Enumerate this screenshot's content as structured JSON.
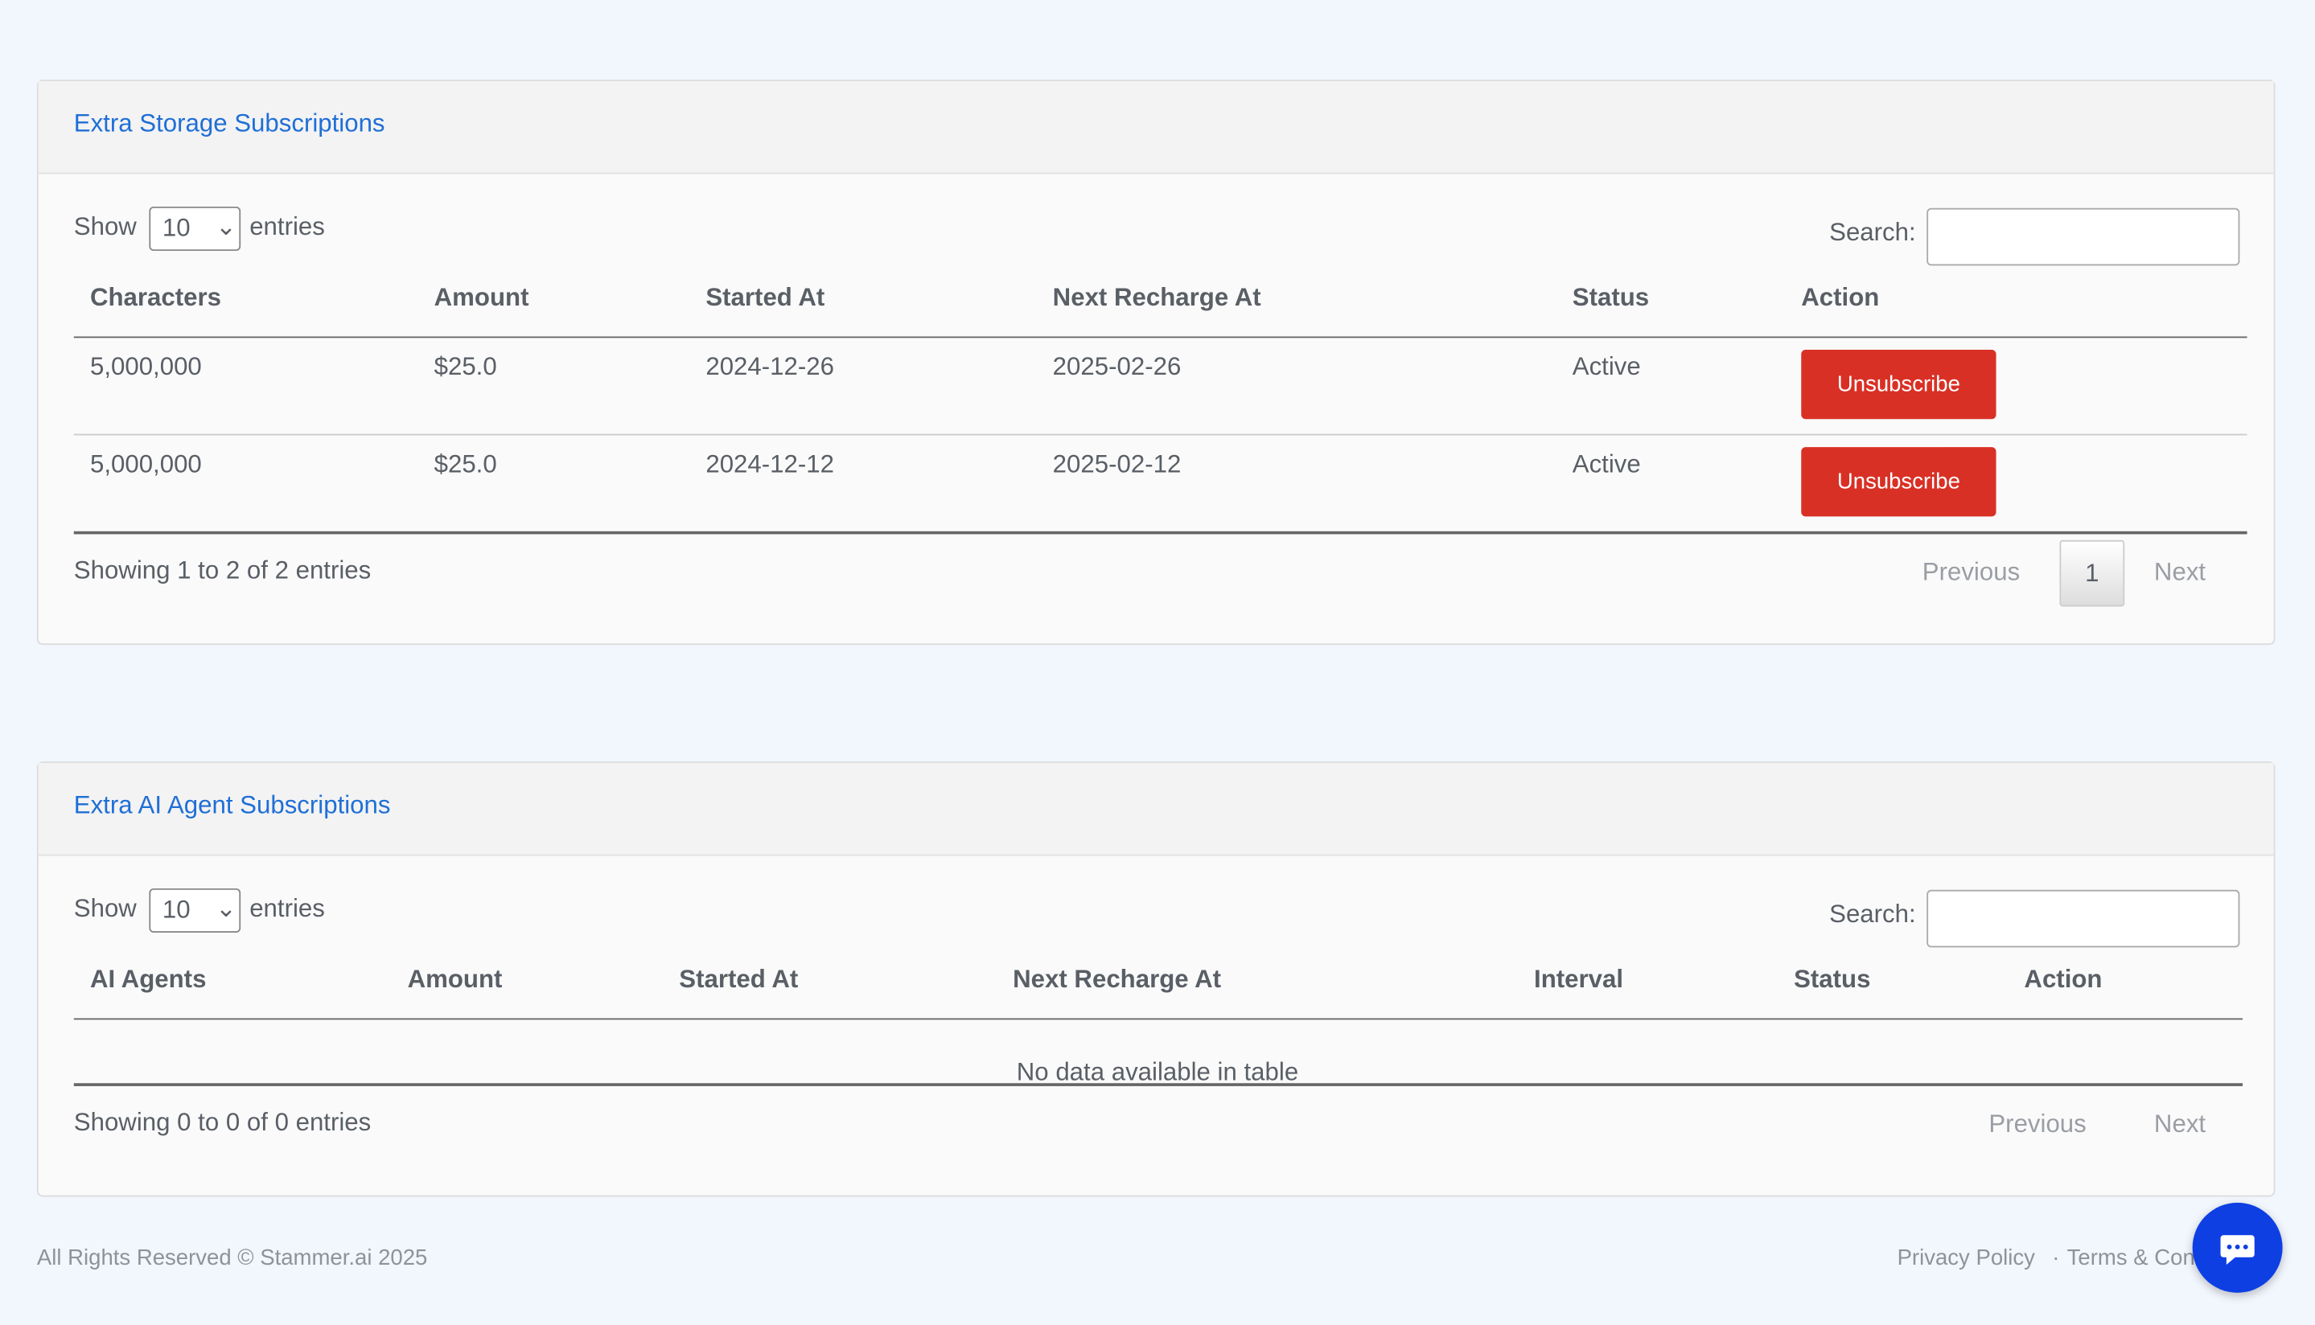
{
  "panels": [
    {
      "title": "Extra Storage Subscriptions",
      "show": "Show",
      "page_size": "10",
      "entries": "entries",
      "search": "Search:",
      "columns": [
        "Characters",
        "Amount",
        "Started At",
        "Next Recharge At",
        "Status",
        "Action"
      ],
      "rows": [
        [
          "5,000,000",
          "$25.0",
          "2024-12-26",
          "2025-02-26",
          "Active",
          "Unsubscribe"
        ],
        [
          "5,000,000",
          "$25.0",
          "2024-12-12",
          "2025-02-12",
          "Active",
          "Unsubscribe"
        ]
      ],
      "info": "Showing 1 to 2 of 2 entries",
      "previous": "Previous",
      "page": "1",
      "next": "Next"
    },
    {
      "title": "Extra AI Agent Subscriptions",
      "show": "Show",
      "page_size": "10",
      "entries": "entries",
      "search": "Search:",
      "columns": [
        "AI Agents",
        "Amount",
        "Started At",
        "Next Recharge At",
        "Interval",
        "Status",
        "Action"
      ],
      "empty": "No data available in table",
      "info": "Showing 0 to 0 of 0 entries",
      "previous": "Previous",
      "next": "Next"
    }
  ],
  "footer": {
    "copyright": "All Rights Reserved © Stammer.ai 2025",
    "privacy": "Privacy Policy",
    "separator": "·",
    "terms": "Terms & Conditions"
  }
}
